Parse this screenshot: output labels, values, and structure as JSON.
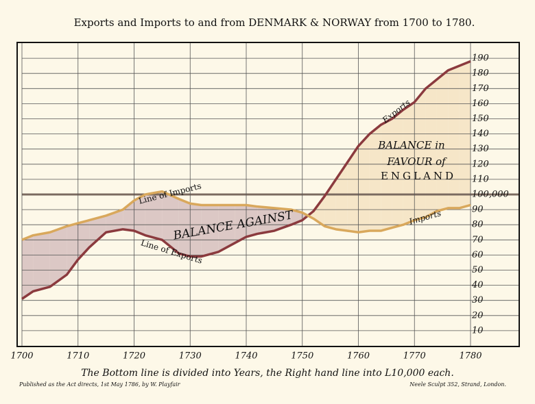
{
  "chart_data": {
    "type": "line",
    "title": "Exports and Imports to and from DENMARK & NORWAY from 1700 to 1780.",
    "x": [
      1700,
      1702,
      1705,
      1708,
      1710,
      1712,
      1715,
      1718,
      1720,
      1722,
      1725,
      1728,
      1730,
      1732,
      1735,
      1738,
      1740,
      1742,
      1745,
      1748,
      1750,
      1752,
      1754,
      1756,
      1758,
      1760,
      1762,
      1764,
      1766,
      1768,
      1770,
      1772,
      1774,
      1776,
      1778,
      1780
    ],
    "series": [
      {
        "name": "Exports",
        "color": "#8b3a3e",
        "values": [
          31,
          36,
          39,
          47,
          57,
          65,
          75,
          77,
          76,
          73,
          70,
          61,
          59,
          59,
          62,
          68,
          72,
          74,
          76,
          80,
          83,
          89,
          99,
          110,
          121,
          132,
          140,
          146,
          150,
          156,
          161,
          170,
          176,
          182,
          185,
          188
        ]
      },
      {
        "name": "Imports",
        "color": "#d9a85c",
        "values": [
          70,
          73,
          75,
          79,
          81,
          83,
          86,
          90,
          96,
          100,
          102,
          97,
          94,
          93,
          93,
          93,
          93,
          92,
          91,
          90,
          88,
          84,
          79,
          77,
          76,
          75,
          76,
          76,
          78,
          80,
          83,
          85,
          89,
          91,
          91,
          93
        ]
      }
    ],
    "xlim": [
      1700,
      1780
    ],
    "xticks": [
      1700,
      1710,
      1720,
      1730,
      1740,
      1750,
      1760,
      1770,
      1780
    ],
    "ylim": [
      0,
      200
    ],
    "yticks": [
      10,
      20,
      30,
      40,
      50,
      60,
      70,
      80,
      90,
      {
        "value": 100,
        "label": "100,000"
      },
      110,
      120,
      130,
      140,
      150,
      160,
      170,
      180,
      190
    ],
    "grid": true,
    "area_colors": {
      "against": "#dcc8c5",
      "favour": "#f6e6c8"
    },
    "annotations": [
      "Line of Imports",
      "Line of Exports",
      "BALANCE AGAINST",
      "BALANCE in",
      "FAVOUR of",
      "ENGLAND"
    ],
    "footnote": "The Bottom line is divided into Years, the Right hand line into L10,000 each.",
    "publisher_left": "Published as the Act directs, 1st May 1786, by W. Playfair",
    "publisher_right": "Neele Sculpt 352, Strand, London."
  }
}
